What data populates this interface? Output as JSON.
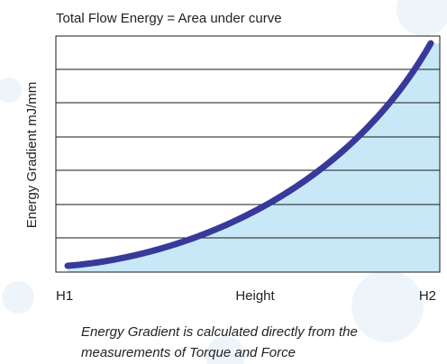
{
  "title": "Total Flow Energy = Area under curve",
  "y_axis_label": "Energy Gradient mJ/mm",
  "x_axis": {
    "start_label": "H1",
    "label": "Height",
    "end_label": "H2"
  },
  "caption": [
    "Energy Gradient is calculated directly from the",
    "measurements of Torque and Force"
  ]
}
